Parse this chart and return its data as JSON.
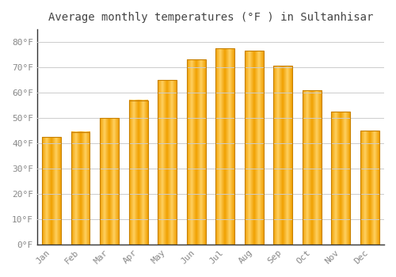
{
  "title": "Average monthly temperatures (°F ) in Sultanhisar",
  "months": [
    "Jan",
    "Feb",
    "Mar",
    "Apr",
    "May",
    "Jun",
    "Jul",
    "Aug",
    "Sep",
    "Oct",
    "Nov",
    "Dec"
  ],
  "values": [
    42.5,
    44.5,
    50,
    57,
    65,
    73,
    77.5,
    76.5,
    70.5,
    61,
    52.5,
    45
  ],
  "bar_color_left": "#F5A800",
  "bar_color_center": "#FFD060",
  "bar_color_right": "#F5A800",
  "ylim": [
    0,
    85
  ],
  "yticks": [
    0,
    10,
    20,
    30,
    40,
    50,
    60,
    70,
    80
  ],
  "ytick_labels": [
    "0°F",
    "10°F",
    "20°F",
    "30°F",
    "40°F",
    "50°F",
    "60°F",
    "70°F",
    "80°F"
  ],
  "background_color": "#FFFFFF",
  "grid_color": "#CCCCCC",
  "title_fontsize": 10,
  "tick_fontsize": 8,
  "tick_color": "#888888",
  "spine_color": "#333333"
}
